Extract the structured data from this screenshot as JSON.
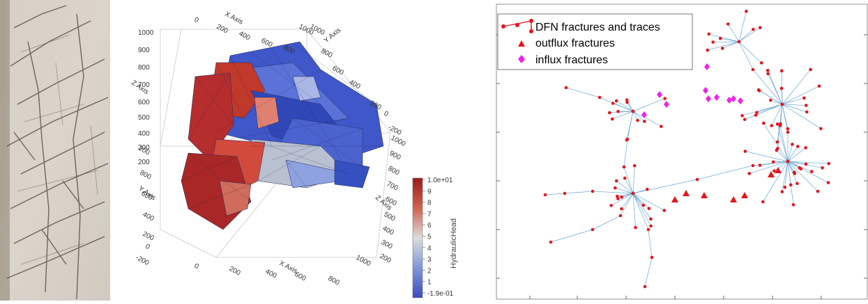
{
  "rock_photo": {},
  "dfn_3d": {
    "axes": {
      "x_label": "X Axis",
      "y_label": "Y Axis",
      "z_label": "Z Axis",
      "x_ticks_top": [
        "0",
        "200",
        "400",
        "600",
        "800",
        "1000"
      ],
      "y_ticks_top": [
        "1000",
        "800",
        "600",
        "400",
        "200",
        "0",
        "-200"
      ],
      "z_ticks_left": [
        "1000",
        "900",
        "800",
        "700",
        "600",
        "500",
        "400",
        "300",
        "200"
      ],
      "y_ticks_left": [
        "200",
        "800",
        "600",
        "400",
        "200",
        "0",
        "-200"
      ],
      "x_ticks_bottom": [
        "0",
        "200",
        "400",
        "600",
        "800",
        "1000"
      ],
      "z_ticks_right": [
        "1000",
        "900",
        "800",
        "700",
        "600",
        "500",
        "400",
        "300",
        "200"
      ]
    },
    "colorbar": {
      "title": "HydraulicHead",
      "tick_labels": [
        "1.0e+01",
        "9",
        "8",
        "7",
        "6",
        "5",
        "4",
        "3",
        "2",
        "1",
        "-1.9e-01"
      ],
      "color_high": "#9b1b1b",
      "color_mid": "#dcdcdc",
      "color_low": "#3a4cc0"
    }
  },
  "graph": {
    "legend": {
      "items": [
        {
          "label": "DFN fractures and traces",
          "color": "#e8141b",
          "marker": "dot-line"
        },
        {
          "label": "outflux fractures",
          "color": "#e8141b",
          "marker": "triangle"
        },
        {
          "label": "influx fractures",
          "color": "#ee22ee",
          "marker": "diamond"
        }
      ]
    },
    "colors": {
      "node": "#e8141b",
      "edge": "#6aa8d8",
      "influx": "#ee22ee",
      "outflux": "#e8141b"
    }
  }
}
